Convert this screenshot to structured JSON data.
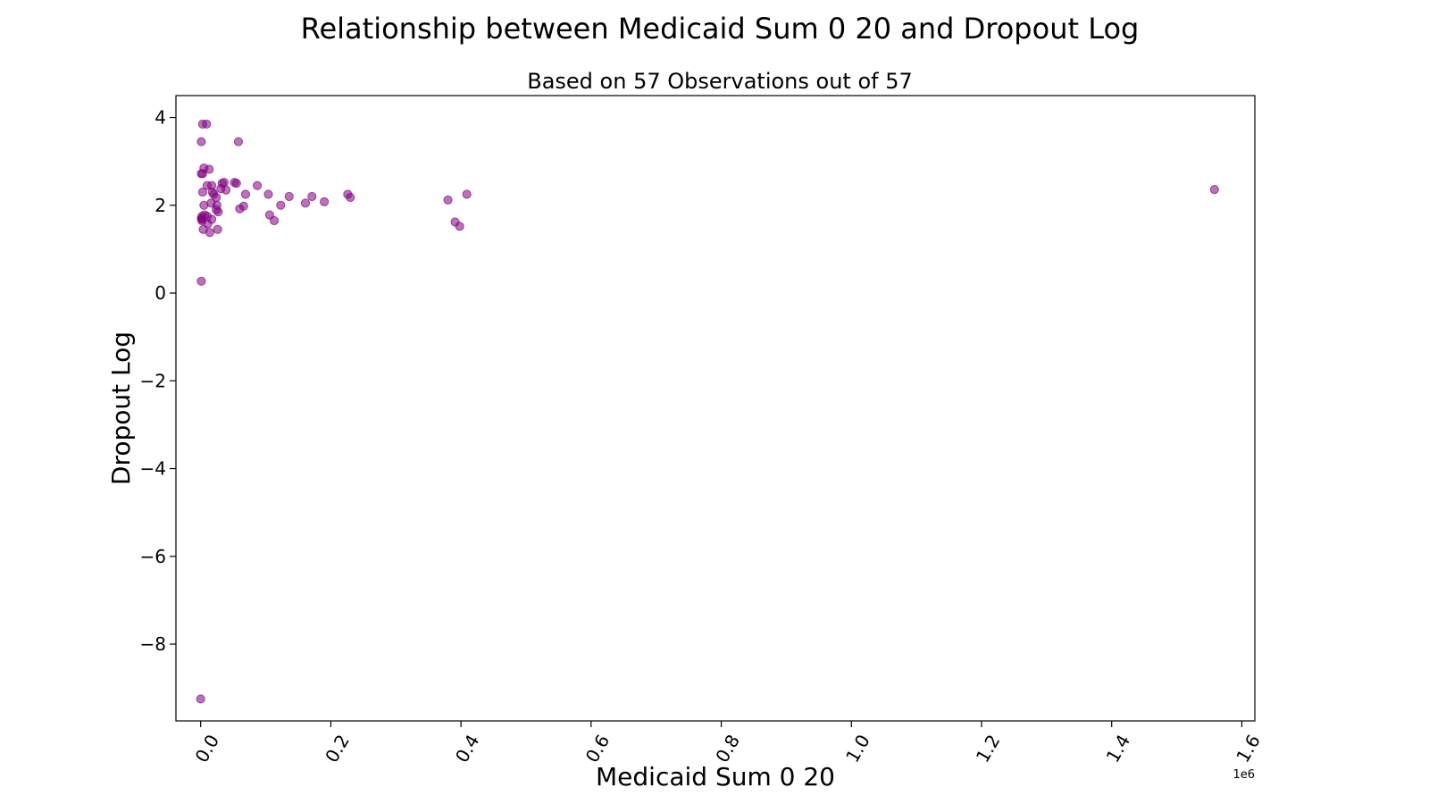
{
  "chart_data": {
    "type": "scatter",
    "title": "Relationship between Medicaid Sum 0 20 and Dropout Log",
    "subtitle": "Based on 57 Observations out of 57",
    "xlabel": "Medicaid Sum 0 20",
    "ylabel": "Dropout Log",
    "x_scale_label": "1e6",
    "x_scale": 1000000,
    "xlim": [
      -0.038,
      1.62
    ],
    "ylim": [
      -9.75,
      4.5
    ],
    "x_ticks": [
      0.0,
      0.2,
      0.4,
      0.6,
      0.8,
      1.0,
      1.2,
      1.4,
      1.6
    ],
    "x_tick_labels": [
      "0.0",
      "0.2",
      "0.4",
      "0.6",
      "0.8",
      "1.0",
      "1.2",
      "1.4",
      "1.6"
    ],
    "y_ticks": [
      4,
      2,
      0,
      -2,
      -4,
      -6,
      -8
    ],
    "y_tick_labels": [
      "4",
      "2",
      "0",
      "−2",
      "−4",
      "−6",
      "−8"
    ],
    "grid": false,
    "color": "#800080",
    "series": [
      {
        "points": [
          [
            3000,
            3.85
          ],
          [
            9000,
            3.85
          ],
          [
            1000,
            3.45
          ],
          [
            58000,
            3.45
          ],
          [
            1000,
            2.72
          ],
          [
            3000,
            2.72
          ],
          [
            5000,
            2.85
          ],
          [
            13000,
            2.82
          ],
          [
            10000,
            2.45
          ],
          [
            17000,
            2.45
          ],
          [
            3000,
            2.3
          ],
          [
            18000,
            2.3
          ],
          [
            20000,
            2.25
          ],
          [
            24000,
            2.18
          ],
          [
            33000,
            2.5
          ],
          [
            36000,
            2.52
          ],
          [
            31000,
            2.38
          ],
          [
            39000,
            2.35
          ],
          [
            52000,
            2.52
          ],
          [
            55000,
            2.5
          ],
          [
            16000,
            2.05
          ],
          [
            5000,
            2.0
          ],
          [
            25000,
            2.0
          ],
          [
            24000,
            1.9
          ],
          [
            27000,
            1.85
          ],
          [
            60000,
            1.92
          ],
          [
            66000,
            1.98
          ],
          [
            69000,
            2.25
          ],
          [
            87000,
            2.45
          ],
          [
            104000,
            2.25
          ],
          [
            2000,
            1.75
          ],
          [
            6000,
            1.78
          ],
          [
            1000,
            1.7
          ],
          [
            2000,
            1.68
          ],
          [
            10000,
            1.75
          ],
          [
            11000,
            1.58
          ],
          [
            17000,
            1.68
          ],
          [
            4000,
            1.45
          ],
          [
            14000,
            1.38
          ],
          [
            26000,
            1.45
          ],
          [
            106000,
            1.78
          ],
          [
            113000,
            1.65
          ],
          [
            123000,
            2.0
          ],
          [
            136000,
            2.2
          ],
          [
            161000,
            2.05
          ],
          [
            171000,
            2.2
          ],
          [
            190000,
            2.08
          ],
          [
            226000,
            2.25
          ],
          [
            230000,
            2.18
          ],
          [
            380000,
            2.12
          ],
          [
            409000,
            2.25
          ],
          [
            391000,
            1.62
          ],
          [
            398000,
            1.52
          ],
          [
            1558000,
            2.36
          ],
          [
            1000,
            0.27
          ],
          [
            0,
            -9.25
          ],
          [
            2000,
            1.65
          ]
        ]
      }
    ]
  }
}
